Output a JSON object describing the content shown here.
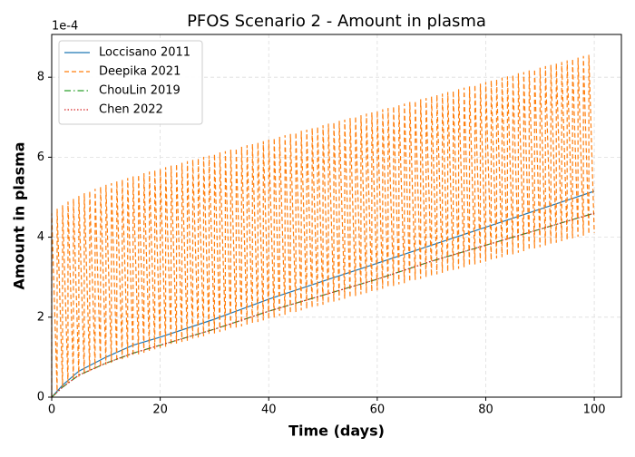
{
  "chart_data": {
    "type": "line",
    "title": "PFOS Scenario 2 - Amount in plasma",
    "x_label": "Time (days)",
    "y_label": "Amount in plasma",
    "y_offset_label": "1e-4",
    "xlim": [
      0,
      105
    ],
    "ylim": [
      0,
      9.07
    ],
    "xticks": [
      0,
      20,
      40,
      60,
      80,
      100
    ],
    "yticks": [
      0,
      2,
      4,
      6,
      8
    ],
    "grid": true,
    "legend": "upper left",
    "series": [
      {
        "name": "Loccisano 2011",
        "color": "#1f77b4",
        "linestyle": "solid",
        "x": [
          0,
          2,
          5,
          10,
          15,
          20,
          30,
          40,
          50,
          60,
          70,
          80,
          90,
          100
        ],
        "values": [
          0,
          0.3,
          0.65,
          1.0,
          1.3,
          1.5,
          1.95,
          2.45,
          2.9,
          3.35,
          3.8,
          4.25,
          4.7,
          5.15
        ]
      },
      {
        "name": "Deepika 2021",
        "color": "#ff7f0e",
        "linestyle": "dashed",
        "x": [
          0,
          0,
          1,
          1,
          2,
          2,
          3,
          3,
          4,
          4,
          5,
          5,
          6,
          6,
          7,
          7,
          8,
          8,
          9,
          9,
          10,
          10,
          11,
          11,
          12,
          12,
          13,
          13,
          14,
          14,
          15,
          15,
          16,
          16,
          17,
          17,
          18,
          18,
          19,
          19,
          20,
          20,
          21,
          21,
          22,
          22,
          23,
          23,
          24,
          24,
          25,
          25,
          26,
          26,
          27,
          27,
          28,
          28,
          29,
          29,
          30,
          30,
          31,
          31,
          32,
          32,
          33,
          33,
          34,
          34,
          35,
          35,
          36,
          36,
          37,
          37,
          38,
          38,
          39,
          39,
          40,
          40,
          41,
          41,
          42,
          42,
          43,
          43,
          44,
          44,
          45,
          45,
          46,
          46,
          47,
          47,
          48,
          48,
          49,
          49,
          50,
          50,
          51,
          51,
          52,
          52,
          53,
          53,
          54,
          54,
          55,
          55,
          56,
          56,
          57,
          57,
          58,
          58,
          59,
          59,
          60,
          60,
          61,
          61,
          62,
          62,
          63,
          63,
          64,
          64,
          65,
          65,
          66,
          66,
          67,
          67,
          68,
          68,
          69,
          69,
          70,
          70,
          71,
          71,
          72,
          72,
          73,
          73,
          74,
          74,
          75,
          75,
          76,
          76,
          77,
          77,
          78,
          78,
          79,
          79,
          80,
          80,
          81,
          81,
          82,
          82,
          83,
          83,
          84,
          84,
          85,
          85,
          86,
          86,
          87,
          87,
          88,
          88,
          89,
          89,
          90,
          90,
          91,
          91,
          92,
          92,
          93,
          93,
          94,
          94,
          95,
          95,
          96,
          96,
          97,
          97,
          98,
          98,
          99,
          99,
          100
        ],
        "values": [
          0,
          4.6,
          0.15,
          4.71,
          0.26,
          4.8,
          0.35,
          4.89,
          0.44,
          4.96,
          0.51,
          5.03,
          0.58,
          5.1,
          0.65,
          5.15,
          0.7,
          5.21,
          0.76,
          5.26,
          0.81,
          5.31,
          0.86,
          5.35,
          0.9,
          5.4,
          0.95,
          5.44,
          0.99,
          5.48,
          1.03,
          5.52,
          1.07,
          5.56,
          1.11,
          5.6,
          1.15,
          5.64,
          1.19,
          5.68,
          1.23,
          5.71,
          1.26,
          5.75,
          1.3,
          5.79,
          1.34,
          5.83,
          1.38,
          5.86,
          1.41,
          5.9,
          1.45,
          5.94,
          1.49,
          5.97,
          1.52,
          6.01,
          1.56,
          6.04,
          1.59,
          6.08,
          1.63,
          6.12,
          1.67,
          6.15,
          1.7,
          6.19,
          1.74,
          6.22,
          1.77,
          6.26,
          1.81,
          6.3,
          1.85,
          6.33,
          1.88,
          6.37,
          1.92,
          6.4,
          1.95,
          6.44,
          1.99,
          6.48,
          2.03,
          6.51,
          2.06,
          6.55,
          2.1,
          6.58,
          2.13,
          6.62,
          2.17,
          6.66,
          2.21,
          6.69,
          2.24,
          6.73,
          2.28,
          6.76,
          2.31,
          6.8,
          2.35,
          6.84,
          2.39,
          6.87,
          2.42,
          6.91,
          2.46,
          6.94,
          2.49,
          6.98,
          2.53,
          7.02,
          2.57,
          7.05,
          2.6,
          7.09,
          2.64,
          7.12,
          2.67,
          7.16,
          2.71,
          7.2,
          2.75,
          7.23,
          2.78,
          7.27,
          2.82,
          7.3,
          2.85,
          7.34,
          2.89,
          7.38,
          2.93,
          7.41,
          2.96,
          7.45,
          3.0,
          7.48,
          3.03,
          7.52,
          3.07,
          7.56,
          3.11,
          7.59,
          3.14,
          7.63,
          3.18,
          7.66,
          3.21,
          7.7,
          3.25,
          7.74,
          3.29,
          7.77,
          3.32,
          7.81,
          3.36,
          7.84,
          3.39,
          7.88,
          3.43,
          7.92,
          3.47,
          7.95,
          3.5,
          7.99,
          3.54,
          8.02,
          3.57,
          8.06,
          3.61,
          8.1,
          3.65,
          8.13,
          3.68,
          8.17,
          3.72,
          8.2,
          3.75,
          8.24,
          3.79,
          8.28,
          3.83,
          8.31,
          3.86,
          8.35,
          3.9,
          8.38,
          3.93,
          8.42,
          3.97,
          8.46,
          4.01,
          8.49,
          4.04,
          8.53,
          4.08,
          8.56,
          4.11
        ]
      },
      {
        "name": "ChouLin 2019",
        "color": "#2ca02c",
        "linestyle": "dashdot",
        "x": [
          0,
          2,
          5,
          10,
          15,
          20,
          30,
          40,
          50,
          60,
          70,
          80,
          90,
          100
        ],
        "values": [
          0,
          0.25,
          0.55,
          0.85,
          1.1,
          1.3,
          1.7,
          2.15,
          2.55,
          2.95,
          3.4,
          3.8,
          4.2,
          4.6
        ]
      },
      {
        "name": "Chen 2022",
        "color": "#d62728",
        "linestyle": "dotted",
        "x": [
          0,
          2,
          5,
          10,
          15,
          20,
          30,
          40,
          50,
          60,
          70,
          80,
          90,
          100
        ],
        "values": [
          0,
          0.25,
          0.55,
          0.85,
          1.1,
          1.3,
          1.7,
          2.15,
          2.55,
          2.95,
          3.4,
          3.8,
          4.2,
          4.6
        ]
      }
    ]
  }
}
